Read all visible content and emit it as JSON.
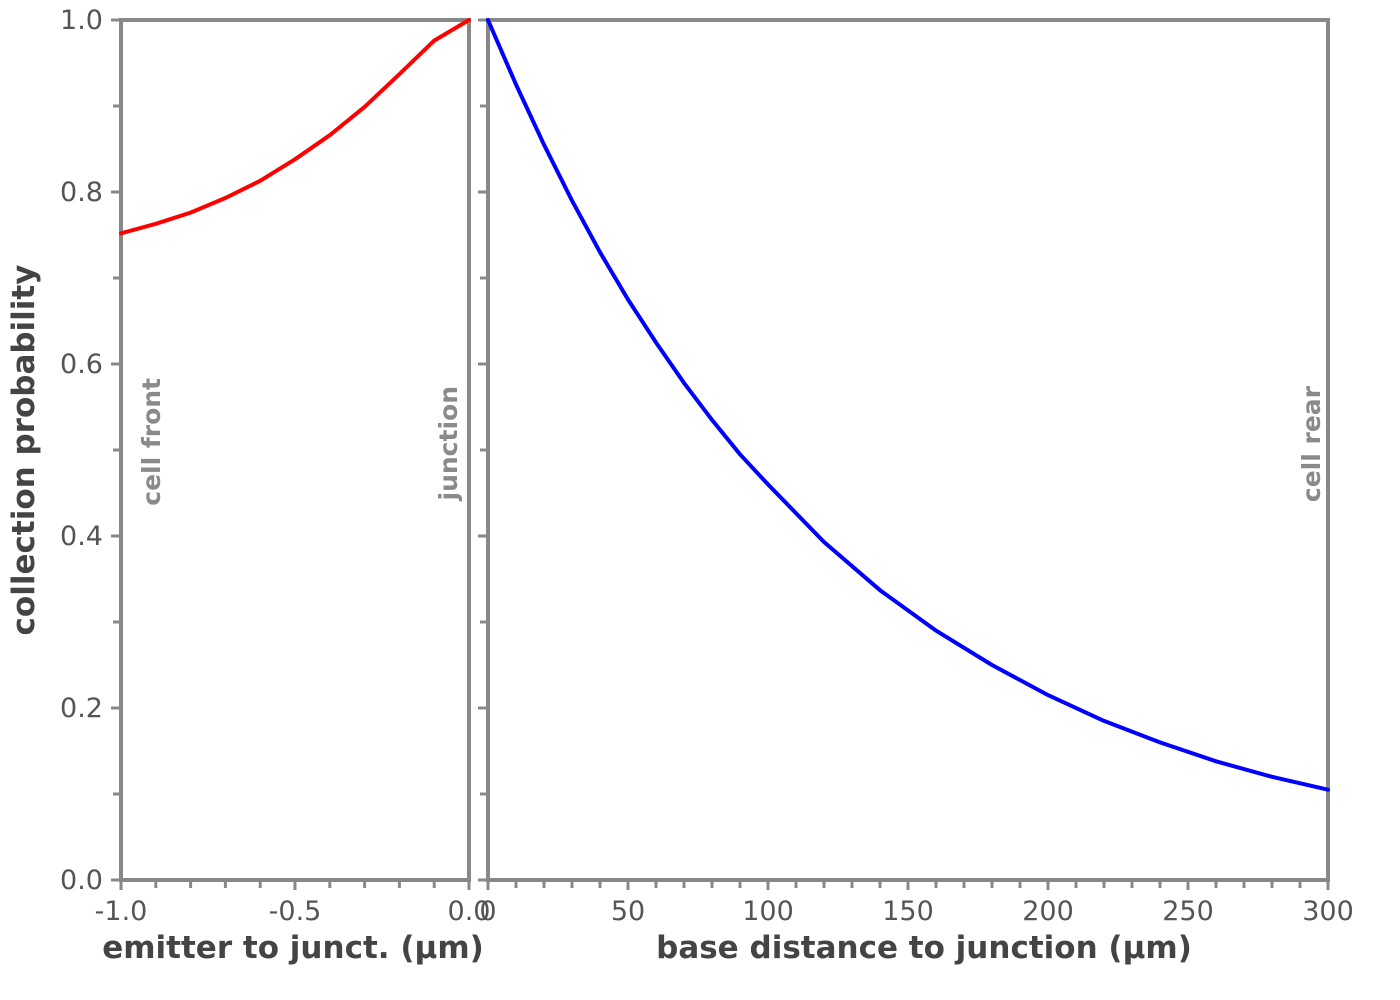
{
  "chart_data": [
    {
      "type": "line",
      "xlabel": "emitter to junct. (µm)",
      "ylabel": "collection probability",
      "xlim": [
        -1.0,
        0.0
      ],
      "ylim": [
        0.0,
        1.0
      ],
      "xticks": [
        {
          "value": -1.0,
          "label": "-1.0"
        },
        {
          "value": -0.5,
          "label": "-0.5"
        },
        {
          "value": 0.0,
          "label": "0.0"
        }
      ],
      "yticks": [
        {
          "value": 0.0,
          "label": "0.0"
        },
        {
          "value": 0.2,
          "label": "0.2"
        },
        {
          "value": 0.4,
          "label": "0.4"
        },
        {
          "value": 0.6,
          "label": "0.6"
        },
        {
          "value": 0.8,
          "label": "0.8"
        },
        {
          "value": 1.0,
          "label": "1.0"
        }
      ],
      "annotations": [
        "cell front",
        "junction"
      ],
      "series": [
        {
          "color": "#ff0000",
          "x": [
            -1.0,
            -0.9,
            -0.8,
            -0.7,
            -0.6,
            -0.5,
            -0.4,
            -0.3,
            -0.2,
            -0.1,
            0.0
          ],
          "y": [
            0.752,
            0.763,
            0.776,
            0.793,
            0.813,
            0.838,
            0.866,
            0.899,
            0.937,
            0.976,
            1.0
          ]
        }
      ]
    },
    {
      "type": "line",
      "xlabel": "base distance to junction (µm)",
      "xlim": [
        0,
        300
      ],
      "ylim": [
        0.0,
        1.0
      ],
      "xticks": [
        {
          "value": 0,
          "label": "0"
        },
        {
          "value": 50,
          "label": "50"
        },
        {
          "value": 100,
          "label": "100"
        },
        {
          "value": 150,
          "label": "150"
        },
        {
          "value": 200,
          "label": "200"
        },
        {
          "value": 250,
          "label": "250"
        },
        {
          "value": 300,
          "label": "300"
        }
      ],
      "annotations": [
        "cell rear"
      ],
      "series": [
        {
          "color": "#0000ff",
          "x": [
            0,
            10,
            20,
            30,
            40,
            50,
            60,
            70,
            80,
            90,
            100,
            120,
            140,
            160,
            180,
            200,
            220,
            240,
            260,
            280,
            300
          ],
          "y": [
            1.0,
            0.925,
            0.855,
            0.79,
            0.73,
            0.675,
            0.625,
            0.578,
            0.535,
            0.495,
            0.46,
            0.393,
            0.337,
            0.29,
            0.25,
            0.215,
            0.185,
            0.16,
            0.138,
            0.12,
            0.105
          ]
        }
      ]
    }
  ]
}
